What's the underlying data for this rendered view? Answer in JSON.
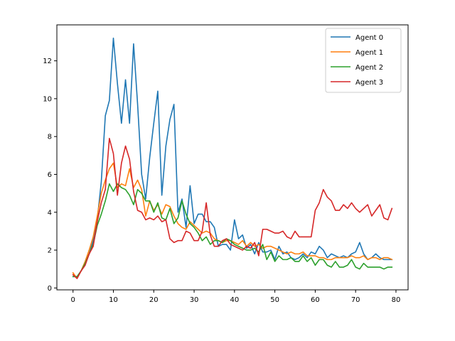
{
  "chart_data": {
    "type": "line",
    "title": "",
    "xlabel": "",
    "ylabel": "",
    "xlim": [
      -4,
      83
    ],
    "ylim": [
      -0.1,
      13.9
    ],
    "xticks": [
      0,
      10,
      20,
      30,
      40,
      50,
      60,
      70,
      80
    ],
    "yticks": [
      0,
      2,
      4,
      6,
      8,
      10,
      12
    ],
    "grid": false,
    "legend_position": "top-right",
    "series": [
      {
        "name": "Agent 0",
        "color": "#1f77b4",
        "values": [
          0.6,
          0.6,
          0.9,
          1.3,
          1.8,
          2.5,
          3.6,
          5.6,
          9.1,
          9.9,
          13.2,
          10.8,
          8.7,
          11.0,
          8.7,
          12.9,
          9.7,
          6.0,
          4.7,
          6.9,
          8.7,
          10.4,
          4.9,
          7.5,
          8.9,
          9.7,
          4.0,
          4.7,
          3.2,
          5.4,
          3.4,
          3.9,
          3.9,
          3.5,
          3.5,
          3.2,
          2.2,
          2.3,
          2.3,
          2.0,
          3.6,
          2.6,
          2.8,
          2.1,
          2.3,
          1.8,
          2.4,
          1.9,
          1.9,
          2.0,
          1.5,
          2.2,
          1.8,
          1.9,
          1.6,
          1.5,
          1.6,
          1.8,
          1.6,
          1.9,
          1.8,
          2.2,
          2.0,
          1.6,
          1.8,
          1.7,
          1.6,
          1.7,
          1.6,
          1.8,
          1.9,
          2.4,
          1.8,
          1.5,
          1.6,
          1.8,
          1.6,
          1.5,
          1.5,
          1.5
        ]
      },
      {
        "name": "Agent 1",
        "color": "#ff7f0e",
        "values": [
          0.8,
          0.5,
          0.9,
          1.4,
          2.0,
          2.7,
          3.8,
          5.0,
          5.7,
          6.3,
          6.6,
          5.3,
          5.5,
          5.4,
          6.3,
          5.3,
          5.7,
          5.2,
          3.8,
          4.6,
          4.1,
          4.4,
          3.9,
          4.4,
          4.3,
          3.8,
          3.4,
          3.2,
          3.1,
          3.5,
          3.3,
          3.1,
          2.9,
          3.0,
          2.9,
          2.6,
          2.5,
          2.4,
          2.5,
          2.5,
          2.4,
          2.3,
          2.5,
          2.2,
          2.4,
          2.2,
          2.3,
          2.1,
          2.2,
          2.2,
          2.1,
          2.0,
          1.9,
          1.8,
          1.9,
          1.8,
          1.8,
          1.9,
          1.7,
          1.7,
          1.7,
          1.6,
          1.6,
          1.5,
          1.5,
          1.6,
          1.6,
          1.6,
          1.6,
          1.7,
          1.6,
          1.6,
          1.7,
          1.5,
          1.6,
          1.6,
          1.5,
          1.6,
          1.6,
          1.5
        ]
      },
      {
        "name": "Agent 2",
        "color": "#2ca02c",
        "values": [
          0.6,
          0.6,
          0.9,
          1.3,
          1.8,
          2.3,
          3.3,
          3.9,
          4.6,
          5.5,
          5.1,
          5.5,
          5.3,
          5.2,
          4.9,
          4.4,
          5.2,
          5.0,
          4.6,
          4.6,
          4.0,
          4.5,
          3.7,
          3.6,
          4.2,
          3.4,
          3.7,
          4.6,
          3.9,
          3.4,
          3.2,
          2.9,
          2.5,
          2.7,
          2.3,
          2.5,
          2.5,
          2.4,
          2.6,
          2.5,
          2.3,
          2.2,
          2.1,
          2.0,
          2.0,
          2.1,
          1.9,
          2.3,
          1.5,
          1.9,
          1.4,
          1.7,
          1.5,
          1.5,
          1.6,
          1.4,
          1.4,
          1.7,
          1.4,
          1.6,
          1.2,
          1.5,
          1.5,
          1.2,
          1.1,
          1.4,
          1.1,
          1.1,
          1.2,
          1.5,
          1.1,
          1.0,
          1.3,
          1.1,
          1.1,
          1.1,
          1.1,
          1.0,
          1.1,
          1.1
        ]
      },
      {
        "name": "Agent 3",
        "color": "#d62728",
        "values": [
          0.7,
          0.5,
          0.9,
          1.2,
          1.8,
          2.2,
          3.5,
          4.5,
          5.2,
          7.9,
          7.1,
          4.9,
          6.6,
          7.5,
          6.8,
          5.1,
          4.1,
          4.0,
          3.6,
          3.7,
          3.6,
          3.8,
          3.5,
          3.6,
          2.6,
          2.4,
          2.5,
          2.5,
          3.0,
          2.9,
          2.5,
          2.5,
          3.0,
          4.5,
          2.8,
          2.2,
          2.2,
          2.5,
          2.6,
          2.3,
          2.2,
          2.1,
          2.0,
          2.2,
          2.1,
          2.4,
          1.7,
          3.1,
          3.1,
          3.0,
          2.9,
          2.9,
          3.0,
          2.7,
          2.6,
          3.0,
          2.7,
          2.7,
          2.7,
          2.7,
          4.1,
          4.5,
          5.2,
          4.8,
          4.6,
          4.1,
          4.1,
          4.4,
          4.2,
          4.5,
          4.2,
          4.0,
          4.2,
          4.4,
          3.8,
          4.1,
          4.4,
          3.7,
          3.6,
          4.2
        ]
      }
    ]
  }
}
